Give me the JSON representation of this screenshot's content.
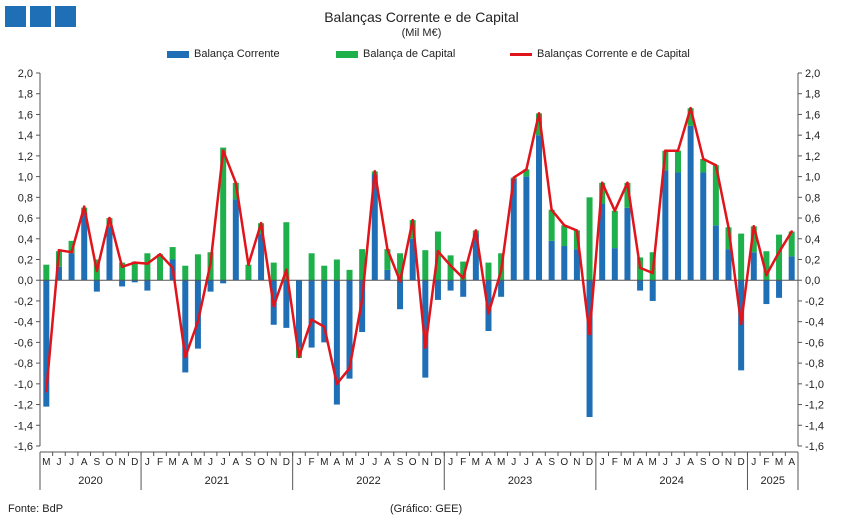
{
  "header": {
    "title": "Balanças Corrente e de Capital",
    "unit": "(Mil M€)"
  },
  "colors": {
    "current": "#1f6fb6",
    "capital": "#1db04b",
    "total": "#e0141a"
  },
  "footer": {
    "source": "Fonte: BdP",
    "credit": "(Gráfico: GEE)"
  },
  "chart_data": {
    "type": "bar",
    "title": "Balanças Corrente e de Capital",
    "subtitle": "(Mil M€)",
    "ylim": [
      -1.6,
      2.0
    ],
    "ytick_step": 0.2,
    "y_axes": "left and right",
    "grid": false,
    "legend_position": "top",
    "stacked": true,
    "month_labels": [
      "M",
      "J",
      "J",
      "A",
      "S",
      "O",
      "N",
      "D",
      "J",
      "F",
      "M",
      "A",
      "M",
      "J",
      "J",
      "A",
      "S",
      "O",
      "N",
      "D",
      "J",
      "F",
      "M",
      "A",
      "M",
      "J",
      "J",
      "A",
      "S",
      "O",
      "N",
      "D",
      "J",
      "F",
      "M",
      "A",
      "M",
      "J",
      "J",
      "A",
      "S",
      "O",
      "N",
      "D",
      "J",
      "F",
      "M",
      "A",
      "M",
      "J",
      "J",
      "A",
      "S",
      "O",
      "N",
      "D",
      "J",
      "F",
      "M",
      "A"
    ],
    "year_groups": [
      {
        "year": "2020",
        "months": 8
      },
      {
        "year": "2021",
        "months": 12
      },
      {
        "year": "2022",
        "months": 12
      },
      {
        "year": "2023",
        "months": 12
      },
      {
        "year": "2024",
        "months": 12
      },
      {
        "year": "2025",
        "months": 4
      }
    ],
    "series": [
      {
        "name": "Balança Corrente",
        "kind": "bar",
        "values": [
          -1.22,
          0.13,
          0.26,
          0.65,
          -0.11,
          0.52,
          -0.06,
          -0.02,
          -0.1,
          0.0,
          0.2,
          -0.89,
          -0.66,
          -0.11,
          -0.03,
          0.78,
          0.0,
          0.45,
          -0.43,
          -0.46,
          -0.65,
          -0.65,
          -0.6,
          -1.2,
          -0.95,
          -0.5,
          1.02,
          0.1,
          -0.28,
          0.4,
          -0.94,
          -0.19,
          -0.1,
          -0.16,
          0.45,
          -0.49,
          -0.16,
          0.98,
          1.0,
          1.4,
          0.38,
          0.33,
          0.3,
          -1.32,
          0.74,
          0.31,
          0.7,
          -0.1,
          -0.2,
          1.06,
          1.04,
          1.49,
          1.04,
          0.53,
          0.3,
          -0.87,
          0.27,
          -0.23,
          -0.17,
          0.23
        ]
      },
      {
        "name": "Balança de Capital",
        "kind": "bar",
        "values": [
          0.15,
          0.15,
          0.12,
          0.05,
          0.2,
          0.08,
          0.17,
          0.18,
          0.26,
          0.25,
          0.12,
          0.14,
          0.25,
          0.27,
          1.28,
          0.16,
          0.15,
          0.1,
          0.17,
          0.56,
          -0.1,
          0.26,
          0.14,
          0.2,
          0.1,
          0.3,
          0.03,
          0.2,
          0.26,
          0.18,
          0.29,
          0.47,
          0.24,
          0.18,
          0.03,
          0.17,
          0.26,
          0.01,
          0.07,
          0.21,
          0.3,
          0.2,
          0.18,
          0.8,
          0.2,
          0.36,
          0.24,
          0.22,
          0.27,
          0.19,
          0.21,
          0.17,
          0.13,
          0.58,
          0.21,
          0.45,
          0.25,
          0.28,
          0.44,
          0.24
        ]
      },
      {
        "name": "Balanças Corrente e de Capital",
        "kind": "line",
        "values": [
          -1.07,
          0.29,
          0.27,
          0.71,
          0.09,
          0.6,
          0.13,
          0.17,
          0.16,
          0.25,
          0.12,
          -0.74,
          -0.4,
          0.16,
          1.25,
          0.94,
          0.15,
          0.55,
          -0.25,
          0.1,
          -0.74,
          -0.38,
          -0.45,
          -1.0,
          -0.85,
          -0.19,
          1.05,
          0.3,
          -0.01,
          0.58,
          -0.65,
          0.28,
          0.14,
          0.02,
          0.48,
          -0.32,
          0.09,
          0.99,
          1.07,
          1.61,
          0.68,
          0.53,
          0.48,
          -0.52,
          0.94,
          0.67,
          0.94,
          0.12,
          0.07,
          1.25,
          1.25,
          1.66,
          1.17,
          1.11,
          0.51,
          -0.42,
          0.52,
          0.05,
          0.27,
          0.47
        ]
      }
    ]
  }
}
